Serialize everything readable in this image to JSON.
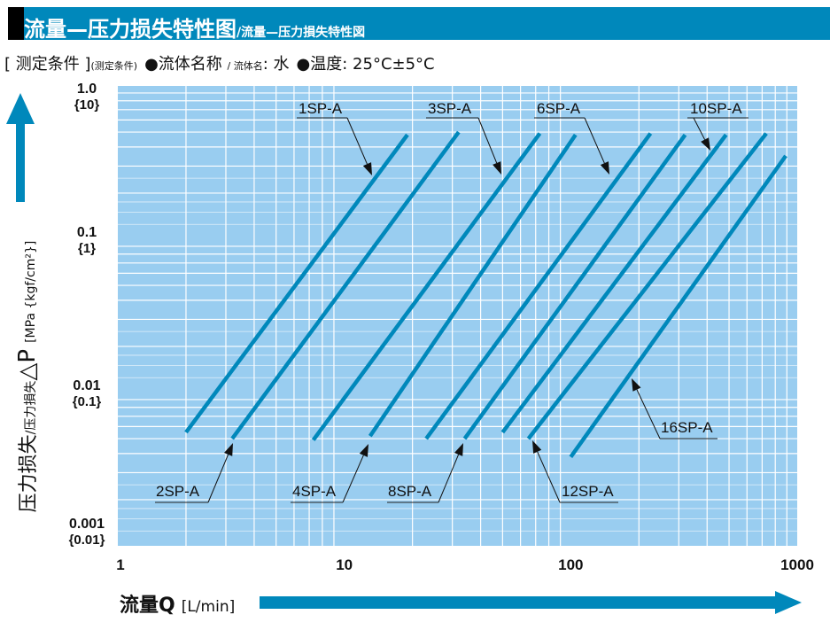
{
  "header": {
    "title": "流量—压力损失特性图",
    "subtitle": "/流量—压力損失特性図"
  },
  "conditions": {
    "label": "[ 测定条件 ]",
    "label_small": "(测定条件)",
    "fluid_label": "●流体名称",
    "fluid_label_small": "/ 流体名",
    "fluid_value": ": 水",
    "temp_label": "●温度",
    "temp_value": ": 25°C±5°C"
  },
  "colors": {
    "header": "#0088bb",
    "plot_background": "#99cdf0",
    "grid": "#ffffff",
    "series_line": "#0088bb"
  },
  "chart_data": {
    "type": "line",
    "x_scale": "log",
    "y_scale": "log",
    "xlim": [
      1,
      1000
    ],
    "ylim": [
      0.001,
      1.0
    ],
    "grid": true,
    "xlabel": "流量Q",
    "xlabel_unit": "[L/min]",
    "ylabel": "压力损失",
    "ylabel_small": "/压力損失",
    "ylabel_symbol": "△P",
    "ylabel_unit": "[MPa {kgf/cm²}]",
    "x_ticks": [
      "1",
      "10",
      "100",
      "1000"
    ],
    "y_ticks": [
      {
        "value": "1.0",
        "alt": "{10}"
      },
      {
        "value": "0.1",
        "alt": "{1}"
      },
      {
        "value": "0.01",
        "alt": "{0.1}"
      },
      {
        "value": "0.001",
        "alt": "{0.01}"
      }
    ],
    "series": [
      {
        "name": "1SP-A",
        "x": [
          2,
          19
        ],
        "y": [
          0.0055,
          0.48
        ]
      },
      {
        "name": "2SP-A",
        "x": [
          3.2,
          32
        ],
        "y": [
          0.005,
          0.5
        ]
      },
      {
        "name": "3SP-A",
        "x": [
          7.3,
          73
        ],
        "y": [
          0.0049,
          0.49
        ]
      },
      {
        "name": "4SP-A",
        "x": [
          13,
          105
        ],
        "y": [
          0.0052,
          0.48
        ]
      },
      {
        "name": "6SP-A",
        "x": [
          23,
          225
        ],
        "y": [
          0.005,
          0.49
        ]
      },
      {
        "name": "8SP-A",
        "x": [
          34,
          320
        ],
        "y": [
          0.005,
          0.48
        ]
      },
      {
        "name": "10SP-A",
        "x": [
          50,
          485
        ],
        "y": [
          0.0055,
          0.48
        ]
      },
      {
        "name": "12SP-A",
        "x": [
          65,
          730
        ],
        "y": [
          0.005,
          0.49
        ]
      },
      {
        "name": "16SP-A",
        "x": [
          100,
          890
        ],
        "y": [
          0.0038,
          0.35
        ]
      }
    ]
  }
}
